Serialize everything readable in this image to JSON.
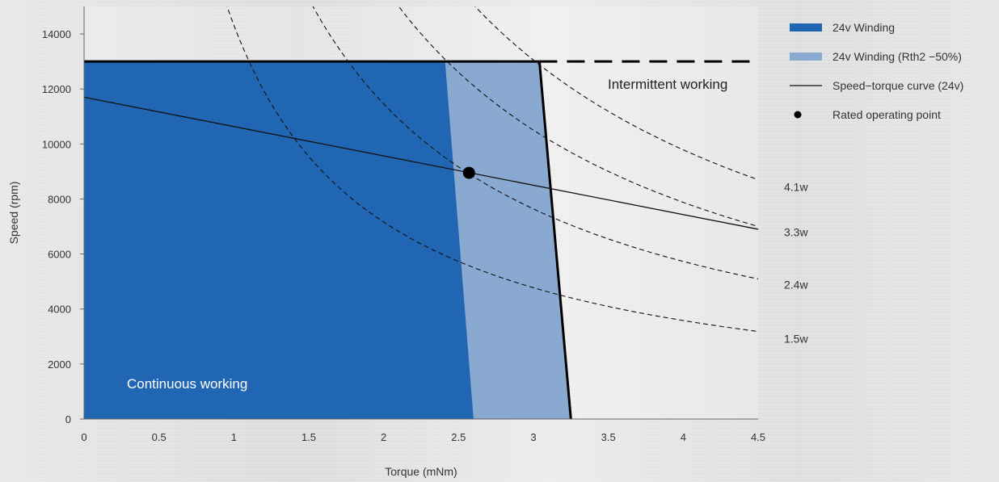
{
  "chart_data": {
    "type": "area",
    "xlabel": "Torque (mNm)",
    "ylabel": "Speed (rpm)",
    "xlim": [
      0,
      4.5
    ],
    "ylim": [
      0,
      15000
    ],
    "x_ticks": [
      "0",
      "0.5",
      "1",
      "1.5",
      "2",
      "2.5",
      "3",
      "3.5",
      "4",
      "4.5"
    ],
    "x_tick_values": [
      0,
      0.5,
      1,
      1.5,
      2,
      2.5,
      3,
      3.5,
      4,
      4.5
    ],
    "y_ticks": [
      "0",
      "2000",
      "4000",
      "6000",
      "8000",
      "10000",
      "12000",
      "14000"
    ],
    "y_tick_values": [
      0,
      2000,
      4000,
      6000,
      8000,
      10000,
      12000,
      14000
    ],
    "max_speed": 13000,
    "continuous_region": {
      "label": "Continuous working",
      "color": "#2166b3",
      "boundary": [
        [
          2.6,
          0
        ],
        [
          2.41,
          13000
        ]
      ]
    },
    "extended_region": {
      "color": "#8aa9d1",
      "boundary": [
        [
          3.25,
          0
        ],
        [
          3.04,
          13000
        ]
      ]
    },
    "intermittent_label": "Intermittent working",
    "speed_torque_curve": {
      "color": "#111111",
      "points": [
        [
          0,
          11700
        ],
        [
          4.5,
          6900
        ]
      ]
    },
    "rated_point": {
      "x": 2.57,
      "y": 8950
    },
    "power_curves": [
      {
        "label": "1.5w",
        "watts": 1.5
      },
      {
        "label": "2.4w",
        "watts": 2.4
      },
      {
        "label": "3.3w",
        "watts": 3.3
      },
      {
        "label": "4.1w",
        "watts": 4.1
      }
    ],
    "legend": [
      {
        "label": "24v Winding",
        "kind": "fill",
        "color": "#2166b3"
      },
      {
        "label": "24v Winding (Rth2 −50%)",
        "kind": "fill",
        "color": "#8aa9d1"
      },
      {
        "label": "Speed−torque curve (24v)",
        "kind": "line",
        "color": "#111111"
      },
      {
        "label": "Rated operating point",
        "kind": "dot",
        "color": "#000000"
      }
    ],
    "legend_position": "right"
  }
}
